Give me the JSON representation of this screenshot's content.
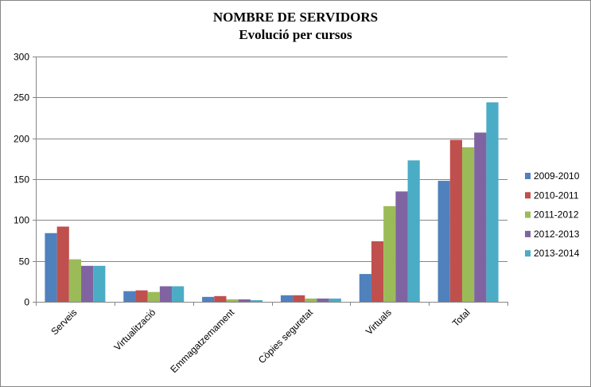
{
  "chart_data": {
    "type": "bar",
    "title": "NOMBRE DE SERVIDORS",
    "subtitle": "Evolució per cursos",
    "xlabel": "",
    "ylabel": "",
    "ylim": [
      0,
      300
    ],
    "yticks": [
      "0",
      "50",
      "100",
      "150",
      "200",
      "250",
      "300"
    ],
    "grid": true,
    "legend_position": "right",
    "categories": [
      "Serveis",
      "Virtualització",
      "Emmagatzemament",
      "Còpies seguretat",
      "Virtuals",
      "Total"
    ],
    "series": [
      {
        "name": "2009-2010",
        "color": "#4F81BD",
        "values": [
          84,
          13,
          6,
          8,
          34,
          148
        ]
      },
      {
        "name": "2010-2011",
        "color": "#C0504D",
        "values": [
          92,
          14,
          7,
          8,
          74,
          198
        ]
      },
      {
        "name": "2011-2012",
        "color": "#9BBB59",
        "values": [
          52,
          12,
          3,
          4,
          117,
          189
        ]
      },
      {
        "name": "2012-2013",
        "color": "#8064A2",
        "values": [
          44,
          19,
          3,
          4,
          135,
          207
        ]
      },
      {
        "name": "2013-2014",
        "color": "#4BACC6",
        "values": [
          44,
          19,
          2,
          4,
          173,
          244
        ]
      }
    ]
  }
}
